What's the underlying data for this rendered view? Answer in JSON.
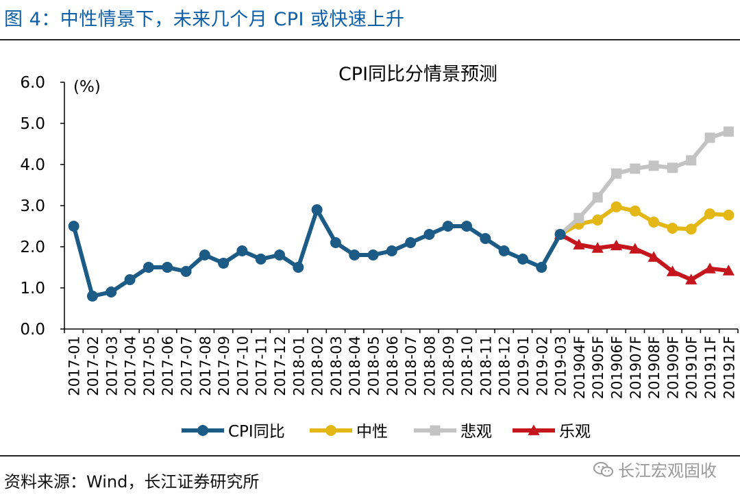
{
  "figure_title": "图 4：中性情景下，未来几个月 CPI 或快速上升",
  "source_note": "资料来源：Wind，长江证券研究所",
  "watermark": "长江宏观固收",
  "chart_data": {
    "type": "line",
    "title": "CPI同比分情景预测",
    "ylabel": "(%)",
    "ylim": [
      0,
      6
    ],
    "ytick_labels": [
      "0.0",
      "1.0",
      "2.0",
      "3.0",
      "4.0",
      "5.0",
      "6.0"
    ],
    "grid": false,
    "legend_position": "bottom",
    "categories": [
      "2017-01",
      "2017-02",
      "2017-03",
      "2017-04",
      "2017-05",
      "2017-06",
      "2017-07",
      "2017-08",
      "2017-09",
      "2017-10",
      "2017-11",
      "2017-12",
      "2018-01",
      "2018-02",
      "2018-03",
      "2018-04",
      "2018-05",
      "2018-06",
      "2018-07",
      "2018-08",
      "2018-09",
      "2018-10",
      "2018-11",
      "2018-12",
      "2019-01",
      "2019-02",
      "2019-03",
      "201904F",
      "201905F",
      "201906F",
      "201907F",
      "201908F",
      "201909F",
      "201910F",
      "201911F",
      "201912F"
    ],
    "series": [
      {
        "name": "CPI同比",
        "color": "#1b5b86",
        "marker": "circle",
        "values": [
          2.5,
          0.8,
          0.9,
          1.2,
          1.5,
          1.5,
          1.4,
          1.8,
          1.6,
          1.9,
          1.7,
          1.8,
          1.5,
          2.9,
          2.1,
          1.8,
          1.8,
          1.9,
          2.1,
          2.3,
          2.5,
          2.5,
          2.2,
          1.9,
          1.7,
          1.5,
          2.3,
          null,
          null,
          null,
          null,
          null,
          null,
          null,
          null,
          null
        ]
      },
      {
        "name": "中性",
        "color": "#e2b716",
        "marker": "circle",
        "values": [
          null,
          null,
          null,
          null,
          null,
          null,
          null,
          null,
          null,
          null,
          null,
          null,
          null,
          null,
          null,
          null,
          null,
          null,
          null,
          null,
          null,
          null,
          null,
          null,
          null,
          null,
          2.3,
          2.55,
          2.65,
          2.97,
          2.87,
          2.6,
          2.45,
          2.43,
          2.8,
          2.77
        ]
      },
      {
        "name": "悲观",
        "color": "#c3c3c3",
        "marker": "square",
        "values": [
          null,
          null,
          null,
          null,
          null,
          null,
          null,
          null,
          null,
          null,
          null,
          null,
          null,
          null,
          null,
          null,
          null,
          null,
          null,
          null,
          null,
          null,
          null,
          null,
          null,
          null,
          2.3,
          2.7,
          3.2,
          3.78,
          3.9,
          3.97,
          3.92,
          4.1,
          4.65,
          4.8
        ]
      },
      {
        "name": "乐观",
        "color": "#c4161c",
        "marker": "triangle",
        "values": [
          null,
          null,
          null,
          null,
          null,
          null,
          null,
          null,
          null,
          null,
          null,
          null,
          null,
          null,
          null,
          null,
          null,
          null,
          null,
          null,
          null,
          null,
          null,
          null,
          null,
          null,
          2.3,
          2.05,
          1.97,
          2.03,
          1.95,
          1.75,
          1.4,
          1.2,
          1.47,
          1.42
        ]
      }
    ]
  }
}
